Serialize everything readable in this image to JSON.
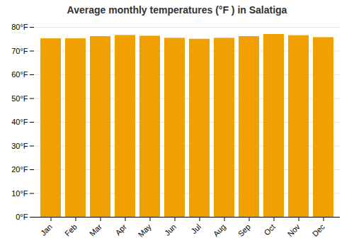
{
  "chart_data": {
    "type": "bar",
    "title": "Average monthly temperatures (°F ) in Salatiga",
    "categories": [
      "Jan",
      "Feb",
      "Mar",
      "Apr",
      "May",
      "Jun",
      "Jul",
      "Aug",
      "Sep",
      "Oct",
      "Nov",
      "Dec"
    ],
    "values": [
      75.2,
      75.2,
      76.1,
      76.6,
      76.3,
      75.4,
      75.0,
      75.4,
      76.1,
      77.0,
      76.5,
      75.7
    ],
    "color": "#F0A000",
    "ylim": [
      0,
      80
    ],
    "yticks": [
      {
        "value": 0,
        "label": "0°F"
      },
      {
        "value": 10,
        "label": "10°F"
      },
      {
        "value": 20,
        "label": "20°F"
      },
      {
        "value": 30,
        "label": "30°F"
      },
      {
        "value": 40,
        "label": "40°F"
      },
      {
        "value": 50,
        "label": "50°F"
      },
      {
        "value": 60,
        "label": "60°F"
      },
      {
        "value": 70,
        "label": "70°F"
      },
      {
        "value": 80,
        "label": "80°F"
      }
    ],
    "grid": true
  }
}
